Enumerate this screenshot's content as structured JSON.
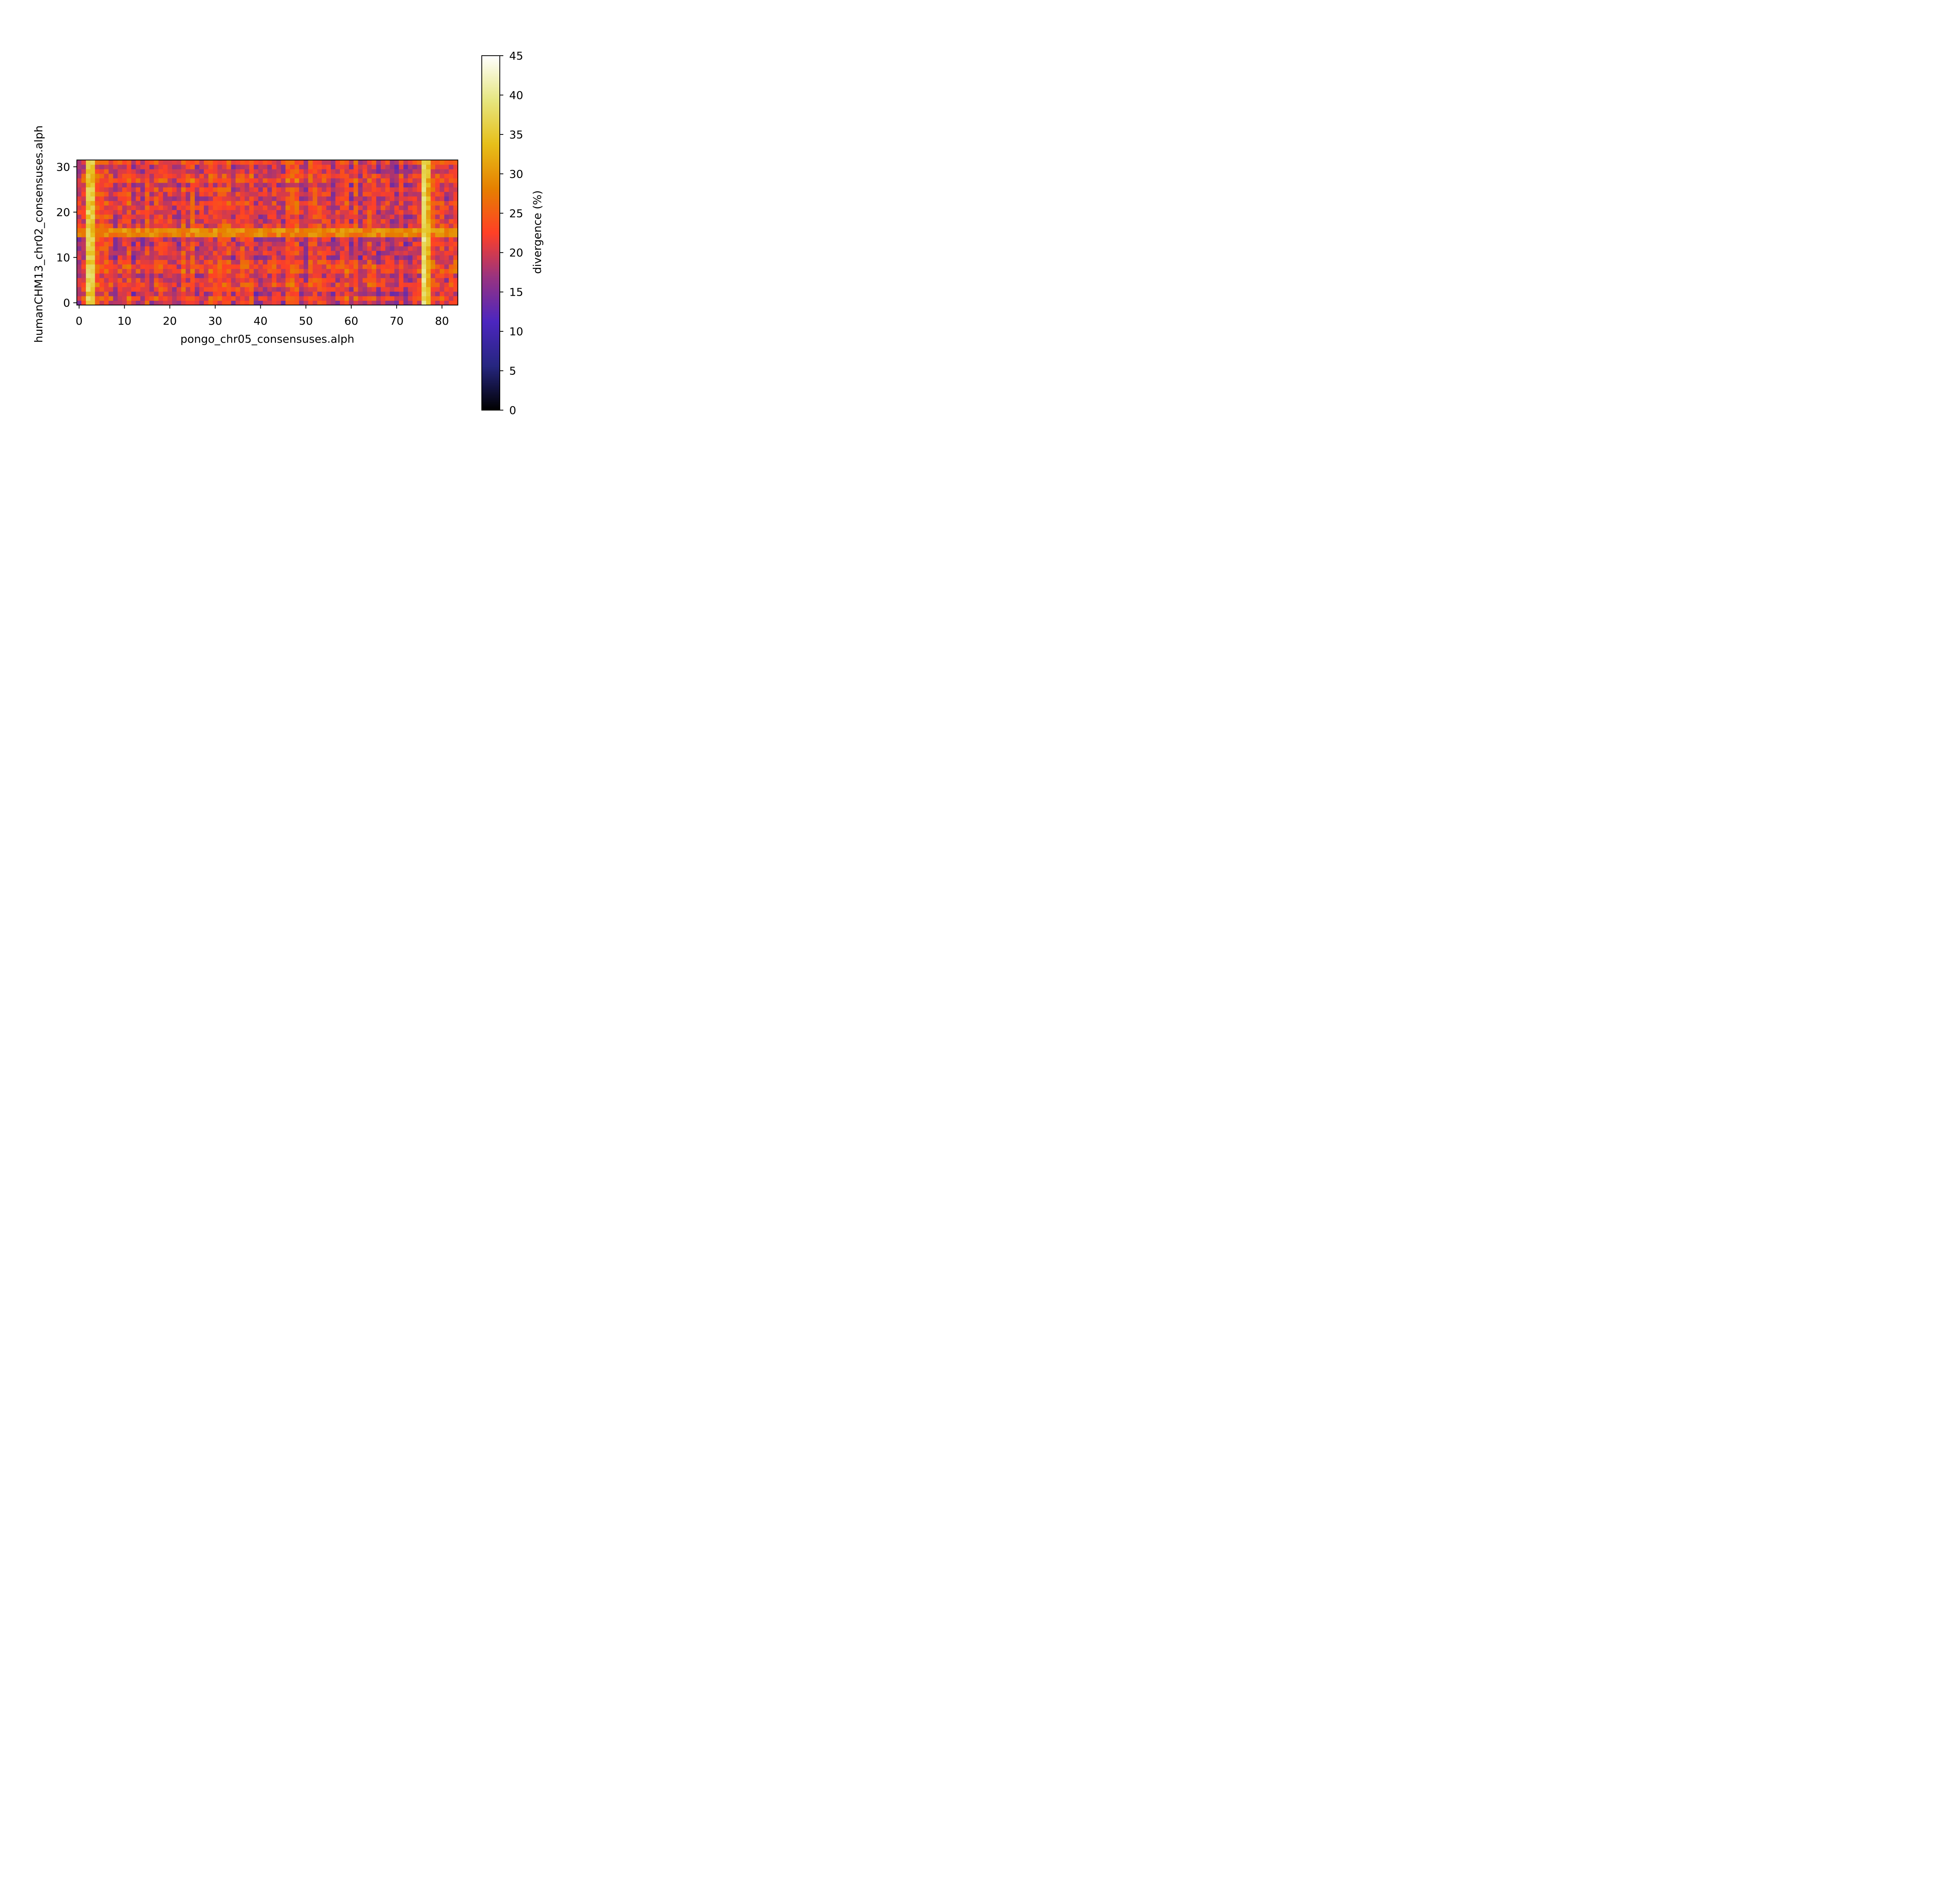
{
  "chart_data": {
    "type": "heatmap",
    "title": "",
    "xlabel": "pongo_chr05_consensuses.alph",
    "ylabel": "humanCHM13_chr02_consensuses.alph",
    "colorbar_label": "divergence (%)",
    "x_count": 84,
    "y_count": 32,
    "xlim": [
      -0.5,
      83.5
    ],
    "ylim": [
      -0.5,
      31.5
    ],
    "x_ticks": [
      0,
      10,
      20,
      30,
      40,
      50,
      60,
      70,
      80
    ],
    "y_ticks": [
      0,
      10,
      20,
      30
    ],
    "colorbar_range": [
      0,
      45
    ],
    "colorbar_ticks": [
      0,
      5,
      10,
      15,
      20,
      25,
      30,
      35,
      40,
      45
    ],
    "colormap": "CMRmap",
    "value_range_observed": [
      11,
      42
    ],
    "bright_columns": [
      {
        "x": 2,
        "value": 36
      },
      {
        "x": 3,
        "value": 35
      },
      {
        "x": 76,
        "value": 38
      },
      {
        "x": 77,
        "value": 33
      }
    ],
    "bright_rows": [
      {
        "y": 15,
        "value": 28
      },
      {
        "y": 16,
        "value": 29
      }
    ],
    "typical_value": 21
  }
}
